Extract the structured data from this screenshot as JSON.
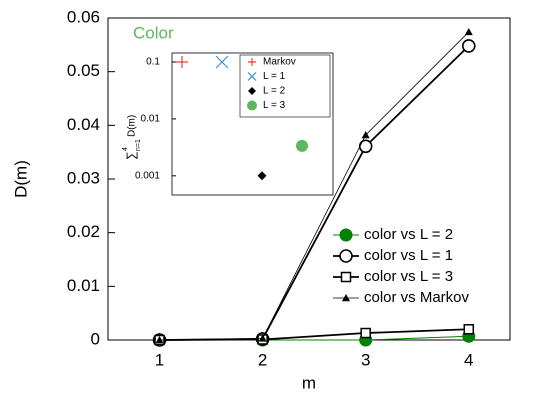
{
  "chart_data": [
    {
      "type": "line",
      "xlabel": "m",
      "ylabel": "D(m)",
      "xlim": [
        0.5,
        4.4
      ],
      "xticks": [
        1,
        2,
        3,
        4
      ],
      "ylim": [
        0,
        0.06
      ],
      "yticks": [
        0,
        0.01,
        0.02,
        0.03,
        0.04,
        0.05,
        0.06
      ],
      "x": [
        1,
        2,
        3,
        4
      ],
      "legend": "center right",
      "series": [
        {
          "name": "color vs  L = 2",
          "color": "#008000",
          "marker": "circle-filled",
          "values": [
            0,
            0,
            0,
            0.0007
          ]
        },
        {
          "name": "color vs L = 1",
          "color": "#000000",
          "marker": "circle-open",
          "values": [
            0,
            0.0002,
            0.0361,
            0.0548
          ]
        },
        {
          "name": "color vs L = 3",
          "color": "#000000",
          "marker": "square-open",
          "values": [
            0,
            0.0001,
            0.0013,
            0.002
          ]
        },
        {
          "name": "color vs Markov",
          "color": "#000000",
          "marker": "triangle",
          "values": [
            0,
            0.0003,
            0.0382,
            0.0574
          ]
        }
      ]
    },
    {
      "type": "scatter",
      "title": "Color",
      "title_color": "#5cb85c",
      "ylabel_sum": "∑",
      "ylabel_sub": "n=1",
      "ylabel_sup": "4",
      "ylabel": "D(m)",
      "log_y": true,
      "ylim": [
        0.00046,
        0.144
      ],
      "yticks": [
        0.1,
        0.01,
        0.001
      ],
      "series": [
        {
          "name": "Markov",
          "color": "#e8403a",
          "marker": "plus",
          "values": [
            0.1
          ]
        },
        {
          "name": "L = 1",
          "color": "#3b8fd6",
          "marker": "x",
          "values": [
            0.1
          ]
        },
        {
          "name": "L = 2",
          "color": "#000000",
          "marker": "diamond",
          "values": [
            0.001
          ]
        },
        {
          "name": "L = 3",
          "color": "#5cb85c",
          "marker": "circle-filled",
          "values": [
            0.00336
          ]
        }
      ]
    }
  ]
}
